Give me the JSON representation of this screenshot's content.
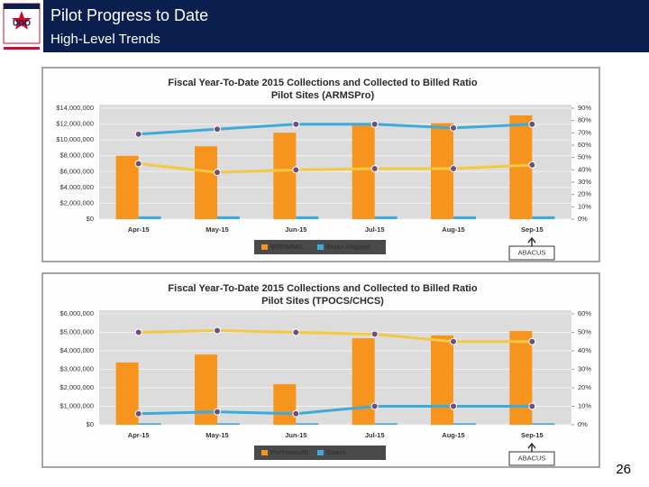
{
  "slide": {
    "title": "Pilot Progress to Date",
    "subtitle": "High-Level Trends",
    "logo_text": "UDO",
    "page_number": "26"
  },
  "chart_data": [
    {
      "type": "bar",
      "title": "Fiscal Year-To-Date 2015 Collections and Collected to Billed Ratio",
      "subtitle": "Pilot Sites (ARMSPro)",
      "categories": [
        "Apr-15",
        "May-15",
        "Jun-15",
        "Jul-15",
        "Aug-15",
        "Sep-15"
      ],
      "series": [
        {
          "name": "WRNMMC",
          "color": "#f7941d",
          "values": [
            8000000,
            9200000,
            10900000,
            12100000,
            12100000,
            13100000
          ],
          "ratio_color": "#f5c842",
          "ratios": [
            45,
            38,
            40,
            41,
            41,
            44
          ]
        },
        {
          "name": "Brian Allgood",
          "color": "#3fa9d8",
          "values": [
            350000,
            350000,
            350000,
            350000,
            350000,
            350000
          ],
          "ratio_color": "#3fa9d8",
          "ratios": [
            69,
            73,
            77,
            77,
            74,
            77
          ]
        }
      ],
      "ylim": [
        0,
        14000000
      ],
      "yticks": [
        {
          "value": 0,
          "label": "$0"
        },
        {
          "value": 2000000,
          "label": "$2,000,000"
        },
        {
          "value": 4000000,
          "label": "$4,000,000"
        },
        {
          "value": 6000000,
          "label": "$6,000,000"
        },
        {
          "value": 8000000,
          "label": "$8,000,000"
        },
        {
          "value": 10000000,
          "label": "$10,000,000"
        },
        {
          "value": 12000000,
          "label": "$12,000,000"
        },
        {
          "value": 14000000,
          "label": "$14,000,000"
        }
      ],
      "y2lim": [
        0,
        90
      ],
      "y2ticks": [
        {
          "value": 0,
          "label": "0%"
        },
        {
          "value": 10,
          "label": "10%"
        },
        {
          "value": 20,
          "label": "20%"
        },
        {
          "value": 30,
          "label": "30%"
        },
        {
          "value": 40,
          "label": "40%"
        },
        {
          "value": 50,
          "label": "50%"
        },
        {
          "value": 60,
          "label": "60%"
        },
        {
          "value": 70,
          "label": "70%"
        },
        {
          "value": 80,
          "label": "80%"
        },
        {
          "value": 90,
          "label": "90%"
        }
      ],
      "annotation": "ABACUS"
    },
    {
      "type": "bar",
      "title": "Fiscal Year-To-Date 2015 Collections and Collected to Billed Ratio",
      "subtitle": "Pilot Sites (TPOCS/CHCS)",
      "categories": [
        "Apr-15",
        "May-15",
        "Jun-15",
        "Jul-15",
        "Aug-15",
        "Sep-15"
      ],
      "series": [
        {
          "name": "Portsmouth",
          "color": "#f7941d",
          "values": [
            3370000,
            3800000,
            2200000,
            4680000,
            4830000,
            5070000
          ],
          "ratio_color": "#f5c842",
          "ratios": [
            50,
            51,
            50,
            49,
            45,
            45
          ]
        },
        {
          "name": "Guam",
          "color": "#3fa9d8",
          "values": [
            80000,
            80000,
            80000,
            80000,
            80000,
            80000
          ],
          "ratio_color": "#3fa9d8",
          "ratios": [
            6,
            7,
            6,
            10,
            10,
            10
          ]
        }
      ],
      "ylim": [
        0,
        6000000
      ],
      "yticks": [
        {
          "value": 0,
          "label": "$0"
        },
        {
          "value": 1000000,
          "label": "$1,000,000"
        },
        {
          "value": 2000000,
          "label": "$2,000,000"
        },
        {
          "value": 3000000,
          "label": "$3,000,000"
        },
        {
          "value": 4000000,
          "label": "$4,000,000"
        },
        {
          "value": 5000000,
          "label": "$5,000,000"
        },
        {
          "value": 6000000,
          "label": "$6,000,000"
        }
      ],
      "y2lim": [
        0,
        60
      ],
      "y2ticks": [
        {
          "value": 0,
          "label": "0%"
        },
        {
          "value": 10,
          "label": "10%"
        },
        {
          "value": 20,
          "label": "20%"
        },
        {
          "value": 30,
          "label": "30%"
        },
        {
          "value": 40,
          "label": "40%"
        },
        {
          "value": 50,
          "label": "50%"
        },
        {
          "value": 60,
          "label": "60%"
        }
      ],
      "annotation": "ABACUS"
    }
  ]
}
